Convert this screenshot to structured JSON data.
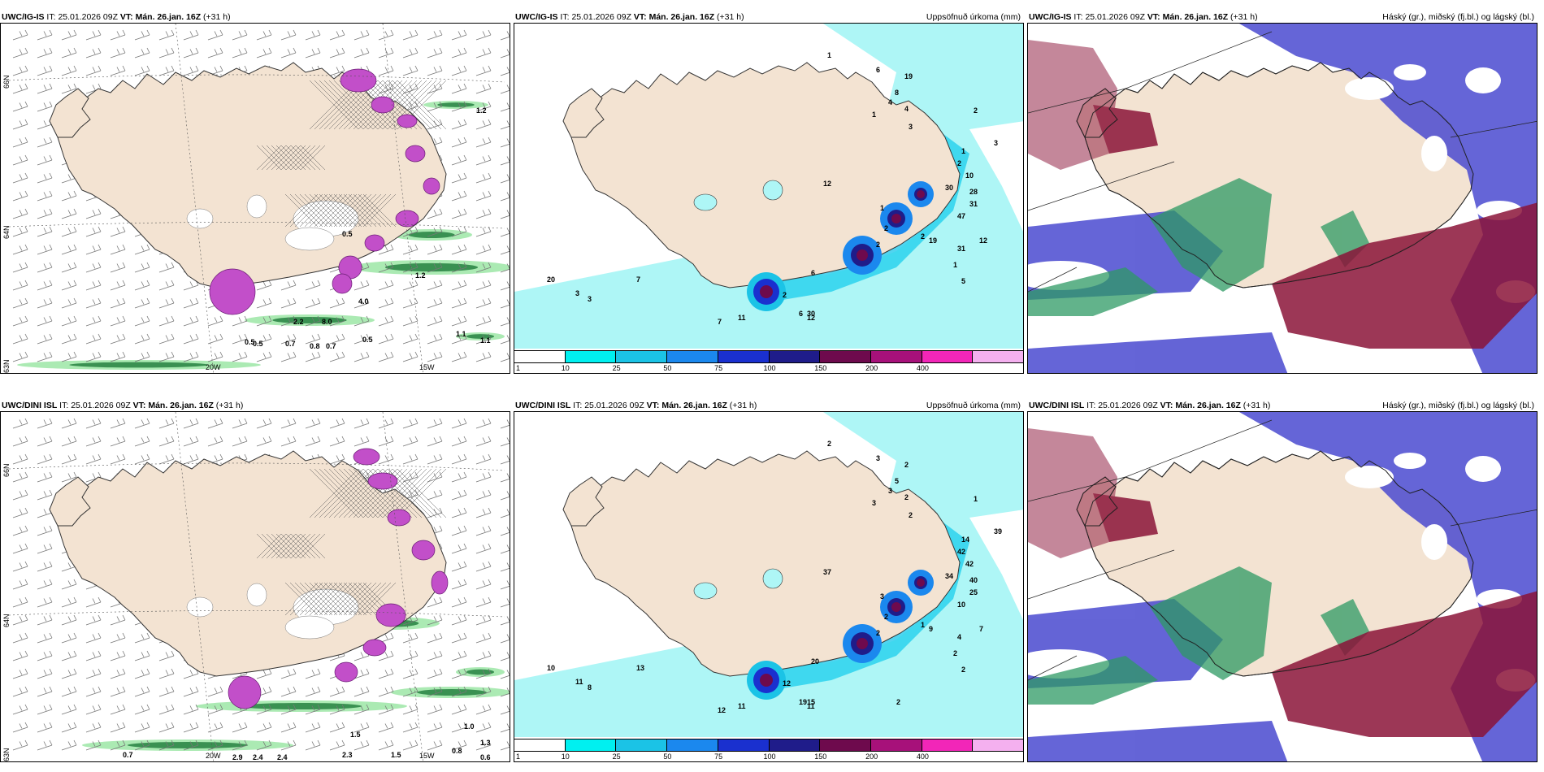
{
  "panels": [
    {
      "id": "p1",
      "title_model": "UWC/IG-IS",
      "title_it_label": "IT:",
      "title_it": "25.01.2026 09Z",
      "title_vt_label": "VT:",
      "title_vt": "Mán. 26.jan. 16Z",
      "title_lead": "(+31 h)",
      "title_right": "",
      "lon_labels": [
        "20W",
        "15W"
      ],
      "lat_labels": [
        "66N",
        "64N",
        "63N"
      ],
      "value_labels": [
        "1.2",
        "1.2",
        "1.1",
        "4.0",
        "0.5",
        "0.5",
        "0.5",
        "0.7",
        "0.8",
        "0.7",
        "2.2",
        "8.0",
        "1.1",
        "0.5"
      ]
    },
    {
      "id": "p2",
      "title_model": "UWC/IG-IS",
      "title_it_label": "IT:",
      "title_it": "25.01.2026 09Z",
      "title_vt_label": "VT:",
      "title_vt": "Mán. 26.jan. 16Z",
      "title_lead": "(+31 h)",
      "title_right": "Uppsöfnuð úrkoma (mm)",
      "legend_ticks": [
        "1",
        "10",
        "25",
        "50",
        "75",
        "100",
        "150",
        "200",
        "400"
      ],
      "value_labels": [
        "1",
        "6",
        "19",
        "8",
        "4",
        "4",
        "3",
        "2",
        "1",
        "1",
        "3",
        "2",
        "10",
        "30",
        "28",
        "31",
        "47",
        "19",
        "31",
        "12",
        "12",
        "6",
        "2",
        "6",
        "30",
        "12",
        "11",
        "7",
        "7",
        "20",
        "3",
        "3",
        "1",
        "2",
        "2",
        "2",
        "1",
        "5"
      ]
    },
    {
      "id": "p3",
      "title_model": "UWC/IG-IS",
      "title_it_label": "IT:",
      "title_it": "25.01.2026 09Z",
      "title_vt_label": "VT:",
      "title_vt": "Mán. 26.jan. 16Z",
      "title_lead": "(+31 h)",
      "title_right": "Háský (gr.), miðský (fj.bl.) og lágský (bl.)"
    },
    {
      "id": "p4",
      "title_model": "UWC/DINI ISL",
      "title_it_label": "IT:",
      "title_it": "25.01.2026 09Z",
      "title_vt_label": "VT:",
      "title_vt": "Mán. 26.jan. 16Z",
      "title_lead": "(+31 h)",
      "title_right": "",
      "lon_labels": [
        "20W",
        "15W"
      ],
      "lat_labels": [
        "66N",
        "64N",
        "63N"
      ],
      "value_labels": [
        "1.0",
        "1.3",
        "0.6",
        "0.8",
        "2.9",
        "2.4",
        "2.4",
        "0.7",
        "1.5",
        "2.3",
        "1.5"
      ]
    },
    {
      "id": "p5",
      "title_model": "UWC/DINI ISL",
      "title_it_label": "IT:",
      "title_it": "25.01.2026 09Z",
      "title_vt_label": "VT:",
      "title_vt": "Mán. 26.jan. 16Z",
      "title_lead": "(+31 h)",
      "title_right": "Uppsöfnuð úrkoma (mm)",
      "legend_ticks": [
        "1",
        "10",
        "25",
        "50",
        "75",
        "100",
        "150",
        "200",
        "400"
      ],
      "value_labels": [
        "2",
        "3",
        "2",
        "5",
        "3",
        "2",
        "2",
        "1",
        "3",
        "14",
        "39",
        "42",
        "42",
        "34",
        "40",
        "25",
        "10",
        "9",
        "4",
        "7",
        "37",
        "20",
        "12",
        "19",
        "15",
        "11",
        "11",
        "12",
        "13",
        "10",
        "11",
        "8",
        "3",
        "2",
        "2",
        "1",
        "2",
        "2",
        "2"
      ]
    },
    {
      "id": "p6",
      "title_model": "UWC/DINI ISL",
      "title_it_label": "IT:",
      "title_it": "25.01.2026 09Z",
      "title_vt_label": "VT:",
      "title_vt": "Mán. 26.jan. 16Z",
      "title_lead": "(+31 h)",
      "title_right": "Háský (gr.), miðský (fj.bl.) og lágský (bl.)"
    }
  ],
  "colors": {
    "land": "#f3e3d2",
    "precip_legend": [
      "#ffffff",
      "#00f0f0",
      "#1bc3e6",
      "#1b88ee",
      "#1a30cf",
      "#1f1c8a",
      "#6e0a4d",
      "#a7117a",
      "#f226b8",
      "#f4b0ef"
    ],
    "high_cloud": "#2e9a64",
    "mid_cloud": "#8b1338",
    "low_cloud": "#4a4ad0",
    "snow": "#c24fc9"
  }
}
